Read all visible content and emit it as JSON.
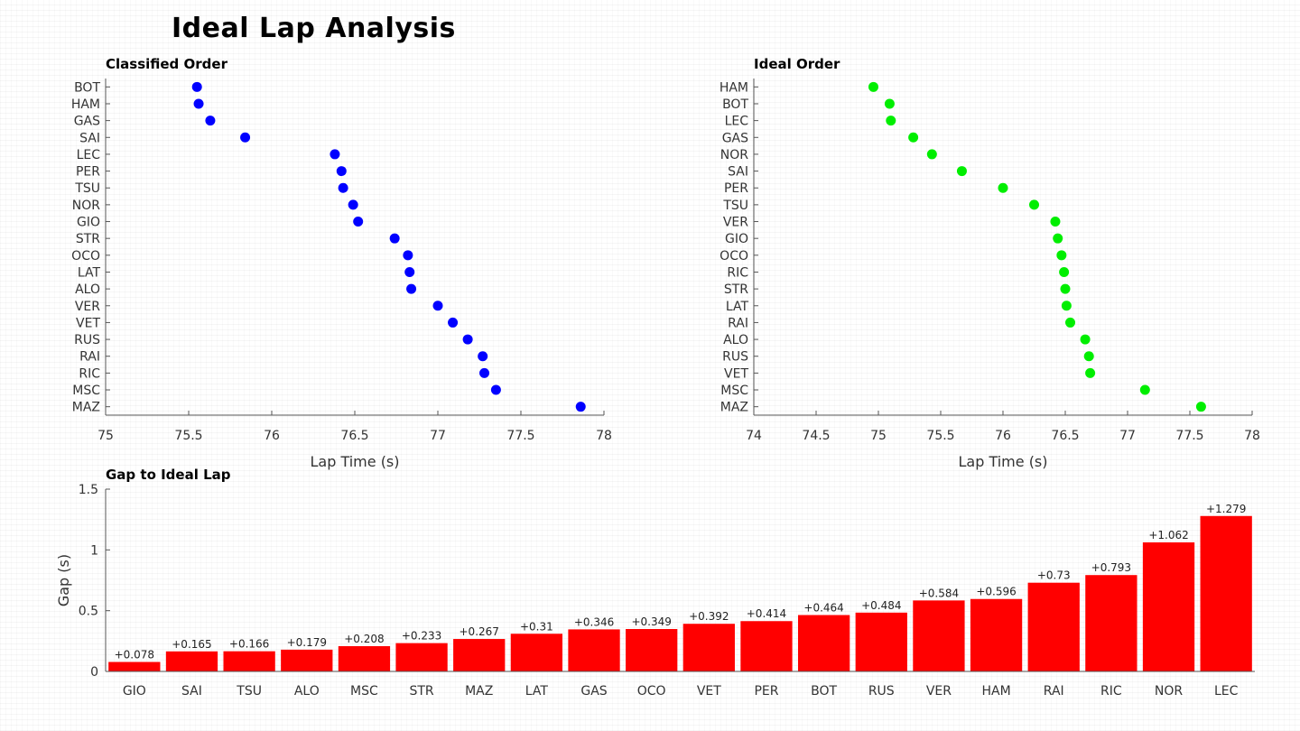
{
  "title": "Ideal Lap Analysis",
  "chart_data": [
    {
      "type": "scatter",
      "title": "Classified Order",
      "xlabel": "Lap Time (s)",
      "ylabel": "",
      "color": "#0000ff",
      "xlim": [
        75,
        78
      ],
      "xticks": [
        75,
        75.5,
        76,
        76.5,
        77,
        77.5,
        78
      ],
      "grid": false,
      "categories": [
        "BOT",
        "HAM",
        "GAS",
        "SAI",
        "LEC",
        "PER",
        "TSU",
        "NOR",
        "GIO",
        "STR",
        "OCO",
        "LAT",
        "ALO",
        "VER",
        "VET",
        "RUS",
        "RAI",
        "RIC",
        "MSC",
        "MAZ"
      ],
      "values": [
        75.55,
        75.56,
        75.63,
        75.84,
        76.38,
        76.42,
        76.43,
        76.49,
        76.52,
        76.74,
        76.82,
        76.83,
        76.84,
        77.0,
        77.09,
        77.18,
        77.27,
        77.28,
        77.35,
        77.86
      ]
    },
    {
      "type": "scatter",
      "title": "Ideal Order",
      "xlabel": "Lap Time (s)",
      "ylabel": "",
      "color": "#00ee00",
      "xlim": [
        74,
        78
      ],
      "xticks": [
        74,
        74.5,
        75,
        75.5,
        76,
        76.5,
        77,
        77.5,
        78
      ],
      "grid": false,
      "categories": [
        "HAM",
        "BOT",
        "LEC",
        "GAS",
        "NOR",
        "SAI",
        "PER",
        "TSU",
        "VER",
        "GIO",
        "OCO",
        "RIC",
        "STR",
        "LAT",
        "RAI",
        "ALO",
        "RUS",
        "VET",
        "MSC",
        "MAZ"
      ],
      "values": [
        74.96,
        75.09,
        75.1,
        75.28,
        75.43,
        75.67,
        76.0,
        76.25,
        76.42,
        76.44,
        76.47,
        76.49,
        76.5,
        76.51,
        76.54,
        76.66,
        76.69,
        76.7,
        77.14,
        77.59
      ]
    },
    {
      "type": "bar",
      "title": "Gap to Ideal Lap",
      "xlabel": "",
      "ylabel": "Gap (s)",
      "color": "#ff0000",
      "ylim": [
        0,
        1.5
      ],
      "yticks": [
        0,
        0.5,
        1,
        1.5
      ],
      "grid": false,
      "categories": [
        "GIO",
        "SAI",
        "TSU",
        "ALO",
        "MSC",
        "STR",
        "MAZ",
        "LAT",
        "GAS",
        "OCO",
        "VET",
        "PER",
        "BOT",
        "RUS",
        "VER",
        "HAM",
        "RAI",
        "RIC",
        "NOR",
        "LEC"
      ],
      "values": [
        0.078,
        0.165,
        0.166,
        0.179,
        0.208,
        0.233,
        0.267,
        0.31,
        0.346,
        0.349,
        0.392,
        0.414,
        0.464,
        0.484,
        0.584,
        0.596,
        0.73,
        0.793,
        1.062,
        1.279
      ],
      "labels": [
        "+0.078",
        "+0.165",
        "+0.166",
        "+0.179",
        "+0.208",
        "+0.233",
        "+0.267",
        "+0.31",
        "+0.346",
        "+0.349",
        "+0.392",
        "+0.414",
        "+0.464",
        "+0.484",
        "+0.584",
        "+0.596",
        "+0.73",
        "+0.793",
        "+1.062",
        "+1.279"
      ]
    }
  ]
}
